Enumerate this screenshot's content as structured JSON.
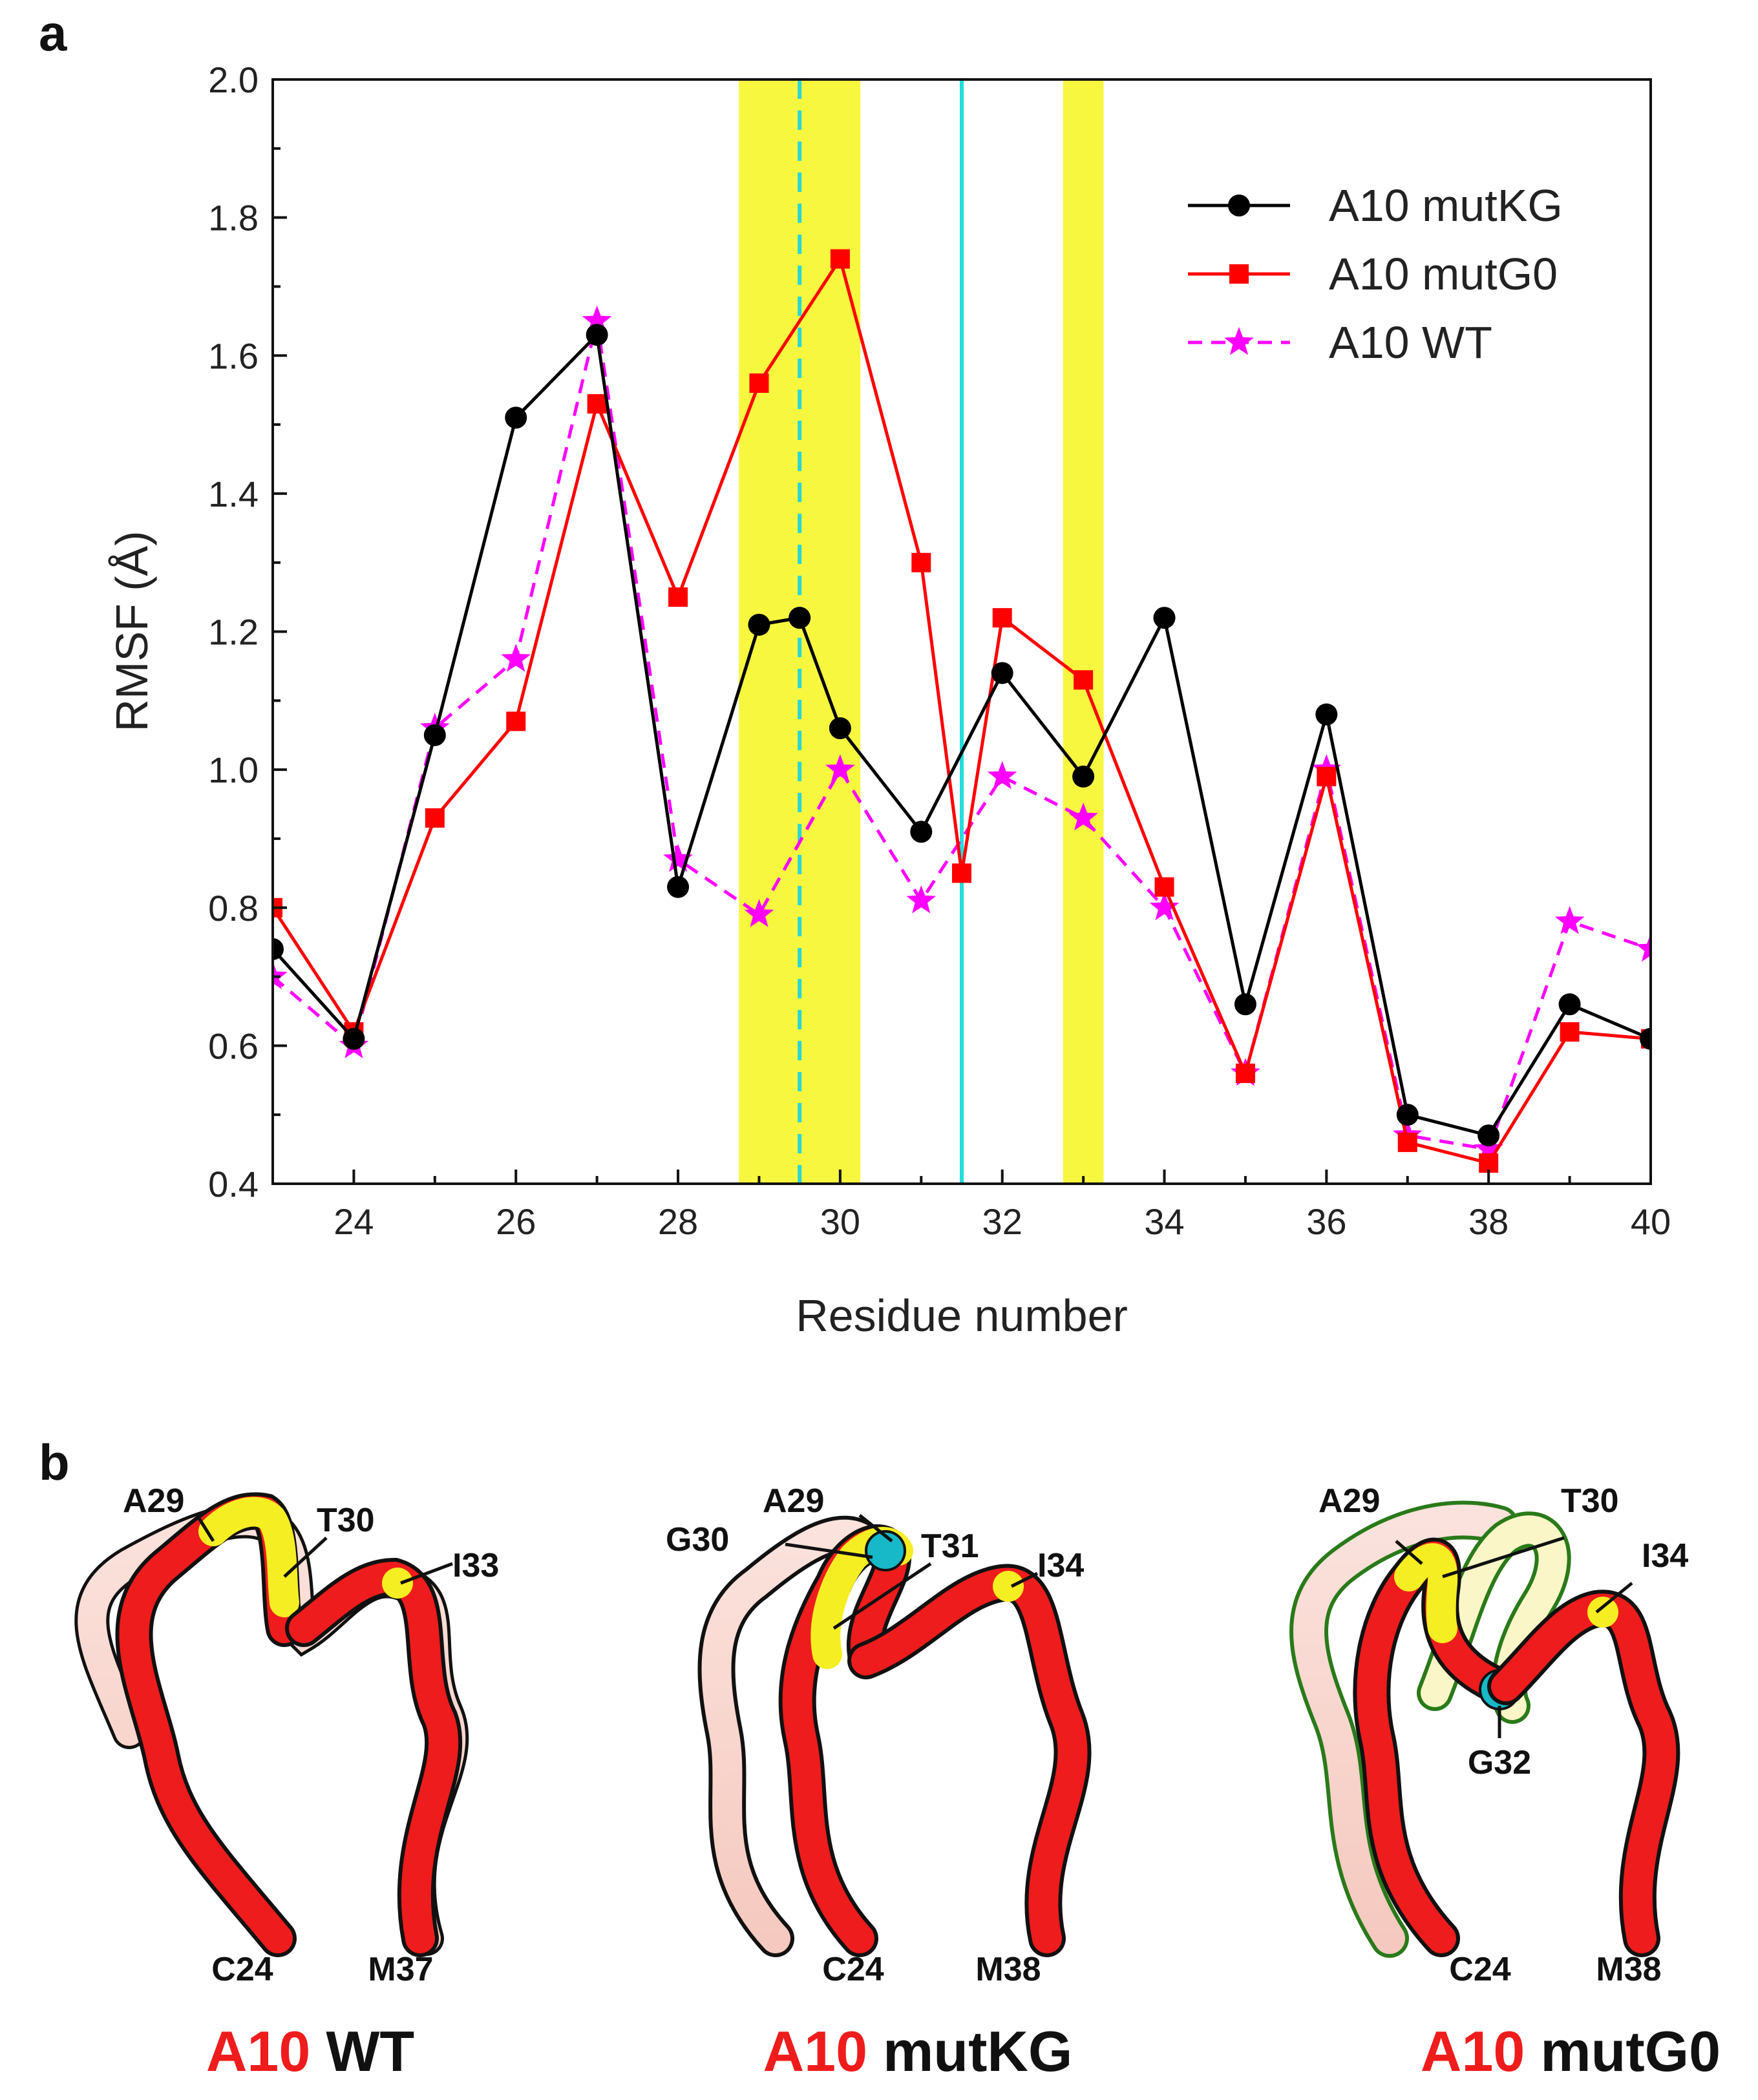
{
  "panel_a_label": "a",
  "panel_b_label": "b",
  "chart_data": {
    "type": "line",
    "title": "",
    "xlabel": "Residue number",
    "ylabel": "RMSF (Å)",
    "xlim": [
      23,
      40
    ],
    "ylim": [
      0.4,
      2.0
    ],
    "xticks": [
      "24",
      "26",
      "28",
      "30",
      "32",
      "34",
      "36",
      "38",
      "40"
    ],
    "yticks": [
      "0.4",
      "0.6",
      "0.8",
      "1.0",
      "1.2",
      "1.4",
      "1.6",
      "1.8",
      "2.0"
    ],
    "legend_position": "top-right",
    "x": [
      23,
      24,
      25,
      26,
      27,
      28,
      29,
      30,
      31,
      32,
      33,
      34,
      35,
      36,
      37,
      38,
      39,
      40
    ],
    "series": [
      {
        "name": "A10 mutKG",
        "color": "#000000",
        "marker": "circle",
        "line": "solid",
        "x": [
          23,
          24,
          25,
          26,
          27,
          28,
          29,
          29.5,
          30,
          31,
          32,
          33,
          34,
          35,
          36,
          37,
          38,
          39,
          40
        ],
        "values": [
          0.74,
          0.61,
          1.05,
          1.51,
          1.63,
          0.83,
          1.21,
          1.22,
          1.06,
          0.91,
          1.14,
          0.99,
          1.22,
          0.66,
          1.08,
          0.5,
          0.47,
          0.66,
          0.61
        ]
      },
      {
        "name": "A10 mutG0",
        "color": "#ff0000",
        "marker": "square",
        "line": "solid",
        "x": [
          23,
          24,
          25,
          26,
          27,
          28,
          29,
          30,
          31,
          31.5,
          32,
          33,
          34,
          35,
          36,
          37,
          38,
          39,
          40
        ],
        "values": [
          0.8,
          0.62,
          0.93,
          1.07,
          1.53,
          1.25,
          1.56,
          1.74,
          1.3,
          0.85,
          1.22,
          1.13,
          0.83,
          0.56,
          0.99,
          0.46,
          0.43,
          0.62,
          0.61
        ]
      },
      {
        "name": "A10 WT",
        "color": "#ff00ff",
        "marker": "star",
        "line": "dashed",
        "x": [
          23,
          24,
          25,
          26,
          27,
          28,
          29,
          30,
          31,
          32,
          33,
          34,
          35,
          36,
          37,
          38,
          39,
          40
        ],
        "values": [
          0.7,
          0.6,
          1.06,
          1.16,
          1.65,
          0.87,
          0.79,
          1.0,
          0.81,
          0.99,
          0.93,
          0.8,
          0.56,
          1.0,
          0.47,
          0.45,
          0.78,
          0.74
        ]
      }
    ],
    "highlight_bands": [
      {
        "x_from": 28.75,
        "x_to": 30.25,
        "color": "#f7f740"
      },
      {
        "x_from": 32.75,
        "x_to": 33.25,
        "color": "#f7f740"
      }
    ],
    "vlines": [
      {
        "x": 29.5,
        "style": "dashed",
        "color": "#2ad6d6"
      },
      {
        "x": 31.5,
        "style": "solid",
        "color": "#22dddd"
      }
    ]
  },
  "structures": [
    {
      "caption_red": "A10",
      "caption_black": "WT",
      "labels": [
        "A29",
        "T30",
        "I33",
        "C24",
        "M37"
      ]
    },
    {
      "caption_red": "A10",
      "caption_black": "mutKG",
      "labels": [
        "A29",
        "G30",
        "T31",
        "I34",
        "C24",
        "M38"
      ]
    },
    {
      "caption_red": "A10",
      "caption_black": "mutG0",
      "labels": [
        "A29",
        "T30",
        "I34",
        "G32",
        "C24",
        "M38"
      ]
    }
  ]
}
